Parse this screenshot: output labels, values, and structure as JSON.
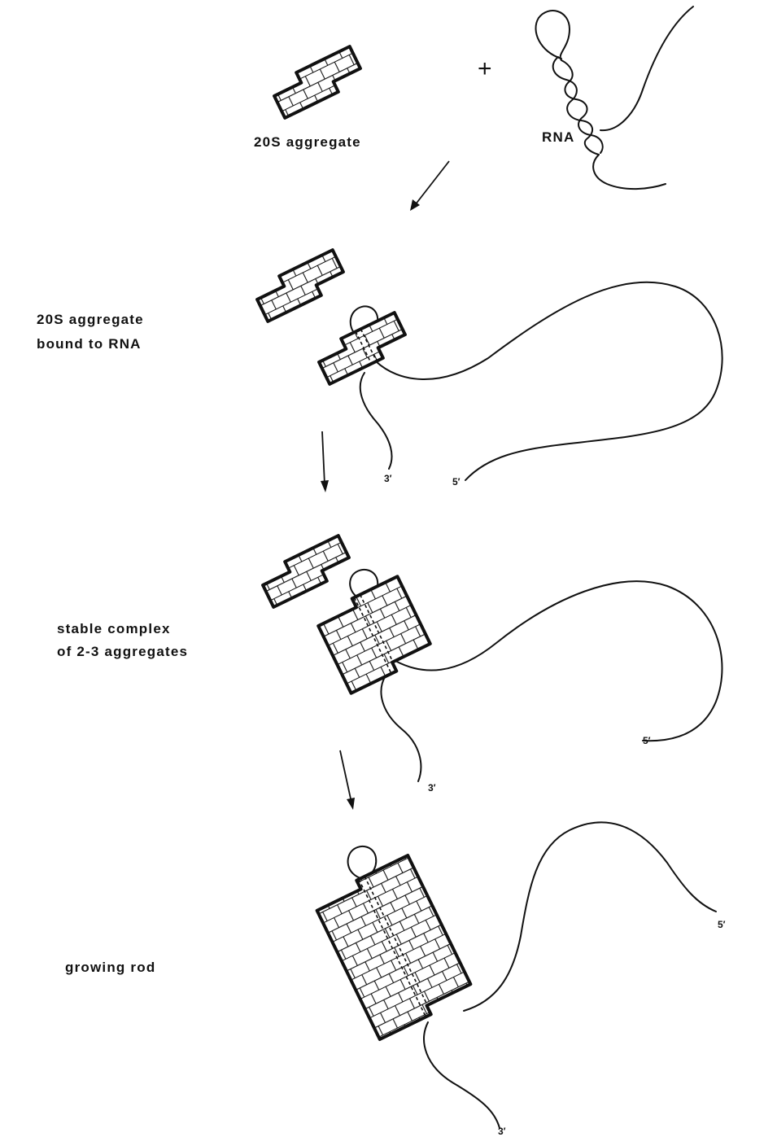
{
  "labels": {
    "aggregate_20s": "20S aggregate",
    "rna": "RNA",
    "plus": "+",
    "bound_line1": "20S aggregate",
    "bound_line2": "bound to RNA",
    "stable_line1": "stable complex",
    "stable_line2": "of 2-3 aggregates",
    "growing_rod": "growing rod"
  },
  "ends": {
    "stage2_three": "3′",
    "stage2_five": "5′",
    "stage3_three": "3′",
    "stage3_five": "5′",
    "stage4_three": "3′",
    "stage4_five": "5′"
  }
}
